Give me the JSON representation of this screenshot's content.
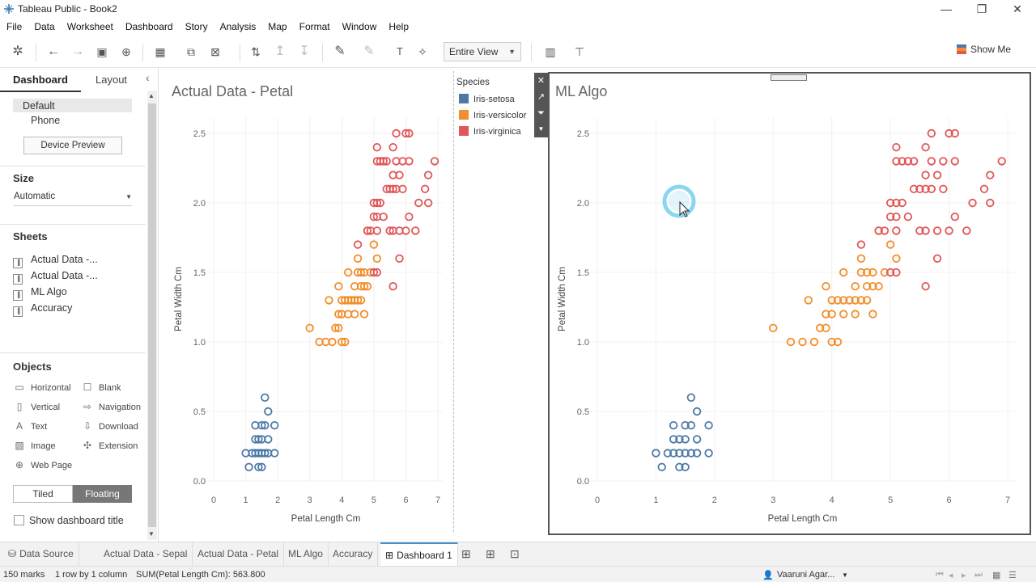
{
  "window": {
    "title": "Tableau Public - Book2"
  },
  "menu": [
    "File",
    "Data",
    "Worksheet",
    "Dashboard",
    "Story",
    "Analysis",
    "Map",
    "Format",
    "Window",
    "Help"
  ],
  "toolbar": {
    "fit": "Entire View",
    "show_me": "Show Me"
  },
  "left_panel": {
    "tabs": [
      "Dashboard",
      "Layout"
    ],
    "devices": [
      "Default",
      "Phone"
    ],
    "device_preview": "Device Preview",
    "size_title": "Size",
    "size_value": "Automatic",
    "sheets_title": "Sheets",
    "sheets": [
      "Actual Data -...",
      "Actual Data -...",
      "ML Algo",
      "Accuracy"
    ],
    "objects_title": "Objects",
    "objects": [
      {
        "label": "Horizontal",
        "icon": "horizontal-icon"
      },
      {
        "label": "Blank",
        "icon": "blank-icon"
      },
      {
        "label": "Vertical",
        "icon": "vertical-icon"
      },
      {
        "label": "Navigation",
        "icon": "navigation-icon"
      },
      {
        "label": "Text",
        "icon": "text-icon"
      },
      {
        "label": "Download",
        "icon": "download-icon"
      },
      {
        "label": "Image",
        "icon": "image-icon"
      },
      {
        "label": "Extension",
        "icon": "extension-icon"
      },
      {
        "label": "Web Page",
        "icon": "web-page-icon"
      }
    ],
    "tiled": "Tiled",
    "floating": "Floating",
    "show_title": "Show dashboard title"
  },
  "legend": {
    "title": "Species",
    "items": [
      {
        "label": "Iris-setosa",
        "color": "#4e79a7"
      },
      {
        "label": "Iris-versicolor",
        "color": "#f28e2b"
      },
      {
        "label": "Iris-virginica",
        "color": "#e15759"
      }
    ]
  },
  "bottom_tabs": [
    "Data Source",
    "Actual Data - Sepal",
    "Actual Data - Petal",
    "ML Algo",
    "Accuracy",
    "Dashboard 1"
  ],
  "status": {
    "marks": "150 marks",
    "rows": "1 row by 1 column",
    "sum": "SUM(Petal Length Cm): 563.800",
    "user": "Vaaruni Agar..."
  },
  "chart_data": [
    {
      "type": "scatter",
      "title": "Actual Data - Petal",
      "xlabel": "Petal Length Cm",
      "ylabel": "Petal Width Cm",
      "xlim": [
        0,
        7
      ],
      "ylim": [
        0,
        2.5
      ],
      "xticks": [
        "0",
        "1",
        "2",
        "3",
        "4",
        "5",
        "6",
        "7"
      ],
      "yticks": [
        "0.0",
        "0.5",
        "1.0",
        "1.5",
        "2.0",
        "2.5"
      ],
      "series": [
        {
          "name": "Iris-setosa",
          "color": "#4e79a7",
          "points": [
            [
              1.0,
              0.2
            ],
            [
              1.1,
              0.1
            ],
            [
              1.2,
              0.2
            ],
            [
              1.3,
              0.2
            ],
            [
              1.3,
              0.3
            ],
            [
              1.3,
              0.4
            ],
            [
              1.4,
              0.1
            ],
            [
              1.4,
              0.2
            ],
            [
              1.4,
              0.3
            ],
            [
              1.5,
              0.1
            ],
            [
              1.5,
              0.2
            ],
            [
              1.5,
              0.4
            ],
            [
              1.5,
              0.3
            ],
            [
              1.6,
              0.2
            ],
            [
              1.6,
              0.4
            ],
            [
              1.6,
              0.6
            ],
            [
              1.7,
              0.2
            ],
            [
              1.7,
              0.3
            ],
            [
              1.7,
              0.5
            ],
            [
              1.9,
              0.2
            ],
            [
              1.9,
              0.4
            ]
          ]
        },
        {
          "name": "Iris-versicolor",
          "color": "#f28e2b",
          "points": [
            [
              3.0,
              1.1
            ],
            [
              3.3,
              1.0
            ],
            [
              3.5,
              1.0
            ],
            [
              3.6,
              1.3
            ],
            [
              3.7,
              1.0
            ],
            [
              3.8,
              1.1
            ],
            [
              3.9,
              1.1
            ],
            [
              3.9,
              1.2
            ],
            [
              3.9,
              1.4
            ],
            [
              4.0,
              1.0
            ],
            [
              4.0,
              1.2
            ],
            [
              4.0,
              1.3
            ],
            [
              4.1,
              1.0
            ],
            [
              4.1,
              1.3
            ],
            [
              4.2,
              1.2
            ],
            [
              4.2,
              1.3
            ],
            [
              4.2,
              1.5
            ],
            [
              4.3,
              1.3
            ],
            [
              4.4,
              1.2
            ],
            [
              4.4,
              1.3
            ],
            [
              4.4,
              1.4
            ],
            [
              4.5,
              1.3
            ],
            [
              4.5,
              1.5
            ],
            [
              4.5,
              1.6
            ],
            [
              4.6,
              1.3
            ],
            [
              4.6,
              1.4
            ],
            [
              4.6,
              1.5
            ],
            [
              4.7,
              1.2
            ],
            [
              4.7,
              1.4
            ],
            [
              4.7,
              1.5
            ],
            [
              4.8,
              1.4
            ],
            [
              4.8,
              1.8
            ],
            [
              4.9,
              1.5
            ],
            [
              5.0,
              1.7
            ],
            [
              5.1,
              1.6
            ]
          ]
        },
        {
          "name": "Iris-virginica",
          "color": "#e15759",
          "points": [
            [
              4.5,
              1.7
            ],
            [
              4.8,
              1.8
            ],
            [
              4.9,
              1.8
            ],
            [
              5.0,
              1.5
            ],
            [
              5.0,
              1.9
            ],
            [
              5.0,
              2.0
            ],
            [
              5.1,
              1.5
            ],
            [
              5.1,
              1.8
            ],
            [
              5.1,
              1.9
            ],
            [
              5.1,
              2.0
            ],
            [
              5.1,
              2.3
            ],
            [
              5.1,
              2.4
            ],
            [
              5.2,
              2.0
            ],
            [
              5.2,
              2.3
            ],
            [
              5.3,
              1.9
            ],
            [
              5.3,
              2.3
            ],
            [
              5.4,
              2.1
            ],
            [
              5.4,
              2.3
            ],
            [
              5.5,
              1.8
            ],
            [
              5.5,
              2.1
            ],
            [
              5.6,
              1.4
            ],
            [
              5.6,
              1.8
            ],
            [
              5.6,
              2.1
            ],
            [
              5.6,
              2.2
            ],
            [
              5.6,
              2.4
            ],
            [
              5.7,
              2.1
            ],
            [
              5.7,
              2.3
            ],
            [
              5.7,
              2.5
            ],
            [
              5.8,
              1.6
            ],
            [
              5.8,
              1.8
            ],
            [
              5.8,
              2.2
            ],
            [
              5.9,
              2.1
            ],
            [
              5.9,
              2.3
            ],
            [
              6.0,
              1.8
            ],
            [
              6.0,
              2.5
            ],
            [
              6.1,
              1.9
            ],
            [
              6.1,
              2.3
            ],
            [
              6.1,
              2.5
            ],
            [
              6.3,
              1.8
            ],
            [
              6.4,
              2.0
            ],
            [
              6.6,
              2.1
            ],
            [
              6.7,
              2.0
            ],
            [
              6.7,
              2.2
            ],
            [
              6.9,
              2.3
            ]
          ]
        }
      ]
    },
    {
      "type": "scatter",
      "title": "ML Algo",
      "xlabel": "Petal Length Cm",
      "ylabel": "Petal Width Cm",
      "xlim": [
        0,
        7
      ],
      "ylim": [
        0,
        2.5
      ],
      "xticks": [
        "0",
        "1",
        "2",
        "3",
        "4",
        "5",
        "6",
        "7"
      ],
      "yticks": [
        "0.0",
        "0.5",
        "1.0",
        "1.5",
        "2.0",
        "2.5"
      ],
      "series": [
        {
          "name": "Iris-setosa",
          "color": "#4e79a7",
          "points": [
            [
              1.0,
              0.2
            ],
            [
              1.1,
              0.1
            ],
            [
              1.2,
              0.2
            ],
            [
              1.3,
              0.2
            ],
            [
              1.3,
              0.3
            ],
            [
              1.3,
              0.4
            ],
            [
              1.4,
              0.1
            ],
            [
              1.4,
              0.2
            ],
            [
              1.4,
              0.3
            ],
            [
              1.5,
              0.1
            ],
            [
              1.5,
              0.2
            ],
            [
              1.5,
              0.4
            ],
            [
              1.5,
              0.3
            ],
            [
              1.6,
              0.2
            ],
            [
              1.6,
              0.4
            ],
            [
              1.6,
              0.6
            ],
            [
              1.7,
              0.2
            ],
            [
              1.7,
              0.3
            ],
            [
              1.7,
              0.5
            ],
            [
              1.9,
              0.2
            ],
            [
              1.9,
              0.4
            ]
          ]
        },
        {
          "name": "Iris-versicolor",
          "color": "#f28e2b",
          "points": [
            [
              3.0,
              1.1
            ],
            [
              3.3,
              1.0
            ],
            [
              3.5,
              1.0
            ],
            [
              3.6,
              1.3
            ],
            [
              3.7,
              1.0
            ],
            [
              3.8,
              1.1
            ],
            [
              3.9,
              1.1
            ],
            [
              3.9,
              1.2
            ],
            [
              3.9,
              1.4
            ],
            [
              4.0,
              1.0
            ],
            [
              4.0,
              1.2
            ],
            [
              4.0,
              1.3
            ],
            [
              4.1,
              1.0
            ],
            [
              4.1,
              1.3
            ],
            [
              4.2,
              1.2
            ],
            [
              4.2,
              1.3
            ],
            [
              4.2,
              1.5
            ],
            [
              4.3,
              1.3
            ],
            [
              4.4,
              1.2
            ],
            [
              4.4,
              1.3
            ],
            [
              4.4,
              1.4
            ],
            [
              4.5,
              1.3
            ],
            [
              4.5,
              1.5
            ],
            [
              4.5,
              1.6
            ],
            [
              4.6,
              1.3
            ],
            [
              4.6,
              1.4
            ],
            [
              4.6,
              1.5
            ],
            [
              4.7,
              1.2
            ],
            [
              4.7,
              1.4
            ],
            [
              4.7,
              1.5
            ],
            [
              4.8,
              1.4
            ],
            [
              4.8,
              1.8
            ],
            [
              4.9,
              1.5
            ],
            [
              5.0,
              1.7
            ],
            [
              5.1,
              1.6
            ]
          ]
        },
        {
          "name": "Iris-virginica",
          "color": "#e15759",
          "points": [
            [
              4.5,
              1.7
            ],
            [
              4.8,
              1.8
            ],
            [
              4.9,
              1.8
            ],
            [
              5.0,
              1.5
            ],
            [
              5.0,
              1.9
            ],
            [
              5.0,
              2.0
            ],
            [
              5.1,
              1.5
            ],
            [
              5.1,
              1.8
            ],
            [
              5.1,
              1.9
            ],
            [
              5.1,
              2.0
            ],
            [
              5.1,
              2.3
            ],
            [
              5.1,
              2.4
            ],
            [
              5.2,
              2.0
            ],
            [
              5.2,
              2.3
            ],
            [
              5.3,
              1.9
            ],
            [
              5.3,
              2.3
            ],
            [
              5.4,
              2.1
            ],
            [
              5.4,
              2.3
            ],
            [
              5.5,
              1.8
            ],
            [
              5.5,
              2.1
            ],
            [
              5.6,
              1.4
            ],
            [
              5.6,
              1.8
            ],
            [
              5.6,
              2.1
            ],
            [
              5.6,
              2.2
            ],
            [
              5.6,
              2.4
            ],
            [
              5.7,
              2.1
            ],
            [
              5.7,
              2.3
            ],
            [
              5.7,
              2.5
            ],
            [
              5.8,
              1.6
            ],
            [
              5.8,
              1.8
            ],
            [
              5.8,
              2.2
            ],
            [
              5.9,
              2.1
            ],
            [
              5.9,
              2.3
            ],
            [
              6.0,
              1.8
            ],
            [
              6.0,
              2.5
            ],
            [
              6.1,
              1.9
            ],
            [
              6.1,
              2.3
            ],
            [
              6.1,
              2.5
            ],
            [
              6.3,
              1.8
            ],
            [
              6.4,
              2.0
            ],
            [
              6.6,
              2.1
            ],
            [
              6.7,
              2.0
            ],
            [
              6.7,
              2.2
            ],
            [
              6.9,
              2.3
            ]
          ]
        }
      ]
    }
  ]
}
